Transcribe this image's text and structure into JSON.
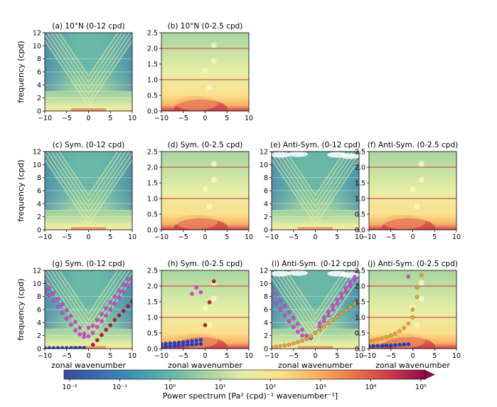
{
  "colors": {
    "colormap": [
      "#3b4a9c",
      "#3a6fae",
      "#3f97b2",
      "#68b7a7",
      "#a7d59f",
      "#e6efa5",
      "#fbe08e",
      "#f7b163",
      "#eb7648",
      "#cf3b4a",
      "#8a0d4e"
    ],
    "magenta": "#e040e0",
    "dark_red": "#c0142c",
    "blue": "#1a3fd0",
    "orange": "#f0a030"
  },
  "common": {
    "ylabel": "frequency (cpd)",
    "xlabel": "zonal wavenumber"
  },
  "colorbar": {
    "label": "Power spectrum [Pa² (cpd)⁻¹ wavenumber⁻¹]",
    "ticks": [
      "10⁻²",
      "10⁻¹",
      "10⁰",
      "10¹",
      "10²",
      "10³",
      "10⁴",
      "10⁵"
    ],
    "scale": "log"
  },
  "chart_data": [
    {
      "type": "heatmap",
      "panel": "a",
      "title": "(a) 10°N (0-12 cpd)",
      "xlim": [
        -10,
        10
      ],
      "ylim": [
        0,
        12
      ],
      "xticks": [
        "−10",
        "−5",
        "0",
        "5",
        "10"
      ],
      "yticks": [
        "0",
        "2",
        "4",
        "6",
        "8",
        "10",
        "12"
      ]
    },
    {
      "type": "heatmap",
      "panel": "b",
      "title": "(b) 10°N (0-2.5 cpd)",
      "xlim": [
        -10,
        10
      ],
      "ylim": [
        0,
        2.5
      ],
      "xticks": [
        "−10",
        "−5",
        "0",
        "5",
        "10"
      ],
      "yticks": [
        "0.0",
        "0.5",
        "1.0",
        "1.5",
        "2.0",
        "2.5"
      ]
    },
    {
      "type": "heatmap",
      "panel": "c",
      "title": "(c) Sym. (0-12 cpd)",
      "xlim": [
        -10,
        10
      ],
      "ylim": [
        0,
        12
      ],
      "xticks": [
        "−10",
        "−5",
        "0",
        "5",
        "10"
      ],
      "yticks": [
        "0",
        "2",
        "4",
        "6",
        "8",
        "10",
        "12"
      ]
    },
    {
      "type": "heatmap",
      "panel": "d",
      "title": "(d) Sym. (0-2.5 cpd)",
      "xlim": [
        -10,
        10
      ],
      "ylim": [
        0,
        2.5
      ],
      "xticks": [
        "−10",
        "−5",
        "0",
        "5",
        "10"
      ],
      "yticks": [
        "0.0",
        "0.5",
        "1.0",
        "1.5",
        "2.0",
        "2.5"
      ]
    },
    {
      "type": "heatmap",
      "panel": "e",
      "title": "(e) Anti-Sym. (0-12 cpd)",
      "xlim": [
        -10,
        10
      ],
      "ylim": [
        0,
        12
      ],
      "xticks": [
        "−10",
        "−5",
        "0",
        "5",
        "10"
      ],
      "yticks": [
        "0",
        "2",
        "4",
        "6",
        "8",
        "10",
        "12"
      ]
    },
    {
      "type": "heatmap",
      "panel": "f",
      "title": "(f) Anti-Sym. (0-2.5 cpd)",
      "xlim": [
        -10,
        10
      ],
      "ylim": [
        0,
        2.5
      ],
      "xticks": [
        "−10",
        "−5",
        "0",
        "5",
        "10"
      ],
      "yticks": [
        "0.0",
        "0.5",
        "1.0",
        "1.5",
        "2.0",
        "2.5"
      ]
    },
    {
      "type": "heatmap",
      "panel": "g",
      "title": "(g) Sym. (0-12 cpd)",
      "xlim": [
        -10,
        10
      ],
      "ylim": [
        0,
        12
      ],
      "xticks": [
        "−10",
        "−5",
        "0",
        "5",
        "10"
      ],
      "yticks": [
        "0",
        "2",
        "4",
        "6",
        "8",
        "10",
        "12"
      ],
      "overlay": [
        {
          "color": "magenta",
          "points": [
            [
              -10,
              10.3
            ],
            [
              -9,
              9.3
            ],
            [
              -8,
              8.5
            ],
            [
              -7,
              7.6
            ],
            [
              -6,
              6.8
            ],
            [
              -5,
              5.9
            ],
            [
              -4,
              5.0
            ],
            [
              -3,
              4.1
            ],
            [
              -2,
              3.2
            ],
            [
              -1,
              2.3
            ],
            [
              0,
              1.9
            ],
            [
              1,
              2.4
            ],
            [
              2,
              3.3
            ],
            [
              3,
              4.2
            ],
            [
              4,
              5.1
            ],
            [
              5,
              6.0
            ],
            [
              6,
              6.9
            ],
            [
              7,
              7.8
            ],
            [
              8,
              8.7
            ],
            [
              9,
              9.6
            ],
            [
              10,
              10.5
            ],
            [
              -10,
              9.0
            ],
            [
              -9,
              8.2
            ],
            [
              -8,
              7.3
            ],
            [
              -7,
              6.4
            ],
            [
              -6,
              5.5
            ],
            [
              -5,
              4.6
            ],
            [
              -4,
              3.7
            ],
            [
              -3,
              2.8
            ],
            [
              -2,
              2.2
            ],
            [
              -1,
              1.8
            ],
            [
              0,
              3.2
            ],
            [
              1,
              3.5
            ],
            [
              2,
              4.4
            ],
            [
              3,
              5.3
            ],
            [
              4,
              6.2
            ],
            [
              5,
              7.1
            ],
            [
              6,
              8.0
            ],
            [
              7,
              8.9
            ],
            [
              8,
              9.8
            ],
            [
              9,
              10.7
            ]
          ]
        },
        {
          "color": "dark_red",
          "points": [
            [
              1,
              0.6
            ],
            [
              2,
              1.3
            ],
            [
              3,
              2.1
            ],
            [
              4,
              2.9
            ],
            [
              5,
              3.6
            ],
            [
              6,
              4.4
            ],
            [
              7,
              5.1
            ],
            [
              8,
              5.8
            ],
            [
              9,
              6.5
            ],
            [
              10,
              7.2
            ]
          ]
        },
        {
          "color": "blue",
          "points": [
            [
              -10,
              0.1
            ],
            [
              -9,
              0.1
            ],
            [
              -8,
              0.1
            ],
            [
              -7,
              0.1
            ],
            [
              -6,
              0.1
            ],
            [
              -5,
              0.1
            ],
            [
              -4,
              0.1
            ],
            [
              -3,
              0.1
            ],
            [
              -2,
              0.1
            ],
            [
              -1,
              0.1
            ]
          ]
        }
      ]
    },
    {
      "type": "heatmap",
      "panel": "h",
      "title": "(h) Sym. (0-2.5 cpd)",
      "xlim": [
        -10,
        10
      ],
      "ylim": [
        0,
        2.5
      ],
      "xticks": [
        "−10",
        "−5",
        "0",
        "5",
        "10"
      ],
      "yticks": [
        "0.0",
        "0.5",
        "1.0",
        "1.5",
        "2.0",
        "2.5"
      ],
      "overlay": [
        {
          "color": "magenta",
          "points": [
            [
              -2,
              1.95
            ],
            [
              -1,
              1.8
            ],
            [
              -3,
              1.75
            ]
          ]
        },
        {
          "color": "dark_red",
          "points": [
            [
              0,
              0.75
            ],
            [
              1,
              1.48
            ],
            [
              2,
              2.15
            ]
          ]
        },
        {
          "color": "blue",
          "points": [
            [
              -10,
              0.15
            ],
            [
              -9,
              0.16
            ],
            [
              -8,
              0.17
            ],
            [
              -7,
              0.18
            ],
            [
              -6,
              0.19
            ],
            [
              -5,
              0.2
            ],
            [
              -4,
              0.22
            ],
            [
              -3,
              0.24
            ],
            [
              -2,
              0.26
            ],
            [
              -1,
              0.28
            ],
            [
              -10,
              0.06
            ],
            [
              -9,
              0.07
            ],
            [
              -8,
              0.08
            ],
            [
              -7,
              0.09
            ],
            [
              -6,
              0.1
            ],
            [
              -5,
              0.11
            ],
            [
              -4,
              0.12
            ],
            [
              -3,
              0.13
            ],
            [
              -2,
              0.14
            ],
            [
              -1,
              0.15
            ]
          ]
        }
      ]
    },
    {
      "type": "heatmap",
      "panel": "i",
      "title": "(i) Anti-Sym. (0-12 cpd)",
      "xlim": [
        -10,
        10
      ],
      "ylim": [
        0,
        12
      ],
      "xticks": [
        "−10",
        "−5",
        "0",
        "5",
        "10"
      ],
      "yticks": [
        "0",
        "2",
        "4",
        "6",
        "8",
        "10",
        "12"
      ],
      "overlay": [
        {
          "color": "magenta",
          "points": [
            [
              -10,
              9.2
            ],
            [
              -9,
              8.3
            ],
            [
              -8,
              7.4
            ],
            [
              -7,
              6.5
            ],
            [
              -6,
              5.6
            ],
            [
              -5,
              4.7
            ],
            [
              -4,
              3.8
            ],
            [
              -3,
              2.9
            ],
            [
              -2,
              2.0
            ],
            [
              -1,
              1.6
            ],
            [
              0,
              2.4
            ],
            [
              1,
              3.3
            ],
            [
              2,
              4.2
            ],
            [
              3,
              5.1
            ],
            [
              4,
              6.0
            ],
            [
              5,
              6.9
            ],
            [
              6,
              7.8
            ],
            [
              7,
              8.7
            ],
            [
              8,
              9.6
            ],
            [
              9,
              10.5
            ],
            [
              -10,
              7.8
            ],
            [
              -9,
              6.9
            ],
            [
              -8,
              6.0
            ],
            [
              -7,
              5.1
            ],
            [
              -6,
              4.2
            ],
            [
              -5,
              3.3
            ],
            [
              -4,
              2.6
            ],
            [
              -3,
              2.0
            ],
            [
              1,
              3.9
            ],
            [
              2,
              4.8
            ],
            [
              3,
              5.7
            ],
            [
              4,
              6.6
            ],
            [
              5,
              7.5
            ],
            [
              6,
              8.4
            ],
            [
              7,
              9.3
            ],
            [
              8,
              10.2
            ],
            [
              9,
              11.0
            ]
          ]
        },
        {
          "color": "orange",
          "points": [
            [
              -10,
              0.2
            ],
            [
              -9,
              0.3
            ],
            [
              -8,
              0.4
            ],
            [
              -7,
              0.5
            ],
            [
              -6,
              0.6
            ],
            [
              -5,
              0.8
            ],
            [
              -4,
              1.0
            ],
            [
              -3,
              1.2
            ],
            [
              -2,
              1.5
            ],
            [
              -1,
              1.9
            ],
            [
              0,
              2.4
            ],
            [
              1,
              2.9
            ],
            [
              2,
              3.4
            ],
            [
              3,
              3.9
            ],
            [
              4,
              4.4
            ],
            [
              5,
              4.9
            ],
            [
              6,
              5.4
            ],
            [
              7,
              5.9
            ],
            [
              8,
              6.4
            ],
            [
              9,
              6.9
            ]
          ]
        }
      ]
    },
    {
      "type": "heatmap",
      "panel": "j",
      "title": "(j) Anti-Sym. (0-2.5 cpd)",
      "xlim": [
        -10,
        10
      ],
      "ylim": [
        0,
        2.5
      ],
      "xticks": [
        "−10",
        "−5",
        "0",
        "5",
        "10"
      ],
      "yticks": [
        "0.0",
        "0.5",
        "1.0",
        "1.5",
        "2.0",
        "2.5"
      ],
      "overlay": [
        {
          "color": "magenta",
          "points": [
            [
              -1,
              2.3
            ]
          ]
        },
        {
          "color": "orange",
          "points": [
            [
              -10,
              0.25
            ],
            [
              -9,
              0.27
            ],
            [
              -8,
              0.3
            ],
            [
              -7,
              0.33
            ],
            [
              -6,
              0.37
            ],
            [
              -5,
              0.42
            ],
            [
              -4,
              0.48
            ],
            [
              -3,
              0.56
            ],
            [
              -2,
              0.66
            ],
            [
              -1,
              0.8
            ],
            [
              0,
              1.0
            ],
            [
              0,
              1.25
            ],
            [
              1,
              1.65
            ],
            [
              1,
              1.95
            ],
            [
              2,
              2.35
            ]
          ]
        },
        {
          "color": "blue",
          "points": [
            [
              -10,
              0.08
            ],
            [
              -9,
              0.08
            ],
            [
              -8,
              0.09
            ],
            [
              -7,
              0.09
            ],
            [
              -6,
              0.1
            ],
            [
              -5,
              0.1
            ],
            [
              -4,
              0.11
            ],
            [
              -3,
              0.12
            ],
            [
              -2,
              0.13
            ],
            [
              -1,
              0.14
            ]
          ]
        }
      ]
    }
  ]
}
